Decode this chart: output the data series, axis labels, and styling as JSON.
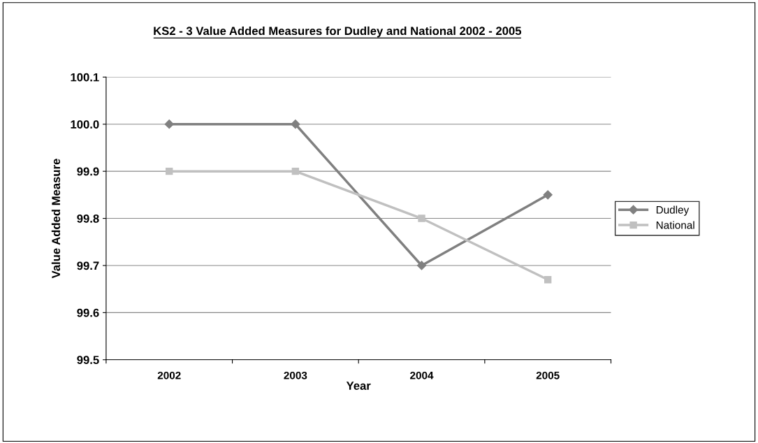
{
  "chart_data": {
    "type": "line",
    "title": "KS2 - 3 Value Added Measures for Dudley and National 2002 - 2005",
    "xlabel": "Year",
    "ylabel": "Value Added Measure",
    "categories": [
      "2002",
      "2003",
      "2004",
      "2005"
    ],
    "series": [
      {
        "name": "Dudley",
        "color": "#808080",
        "marker": "diamond",
        "values": [
          100.0,
          100.0,
          99.7,
          99.85
        ]
      },
      {
        "name": "National",
        "color": "#c0c0c0",
        "marker": "square",
        "values": [
          99.9,
          99.9,
          99.8,
          99.67
        ]
      }
    ],
    "ylim": [
      99.5,
      100.1
    ],
    "yticks": [
      99.5,
      99.6,
      99.7,
      99.8,
      99.9,
      {
        "value": 100.0,
        "label": "100.0"
      },
      100.1
    ],
    "grid": "y",
    "legend": "right",
    "line_style": "solid"
  }
}
